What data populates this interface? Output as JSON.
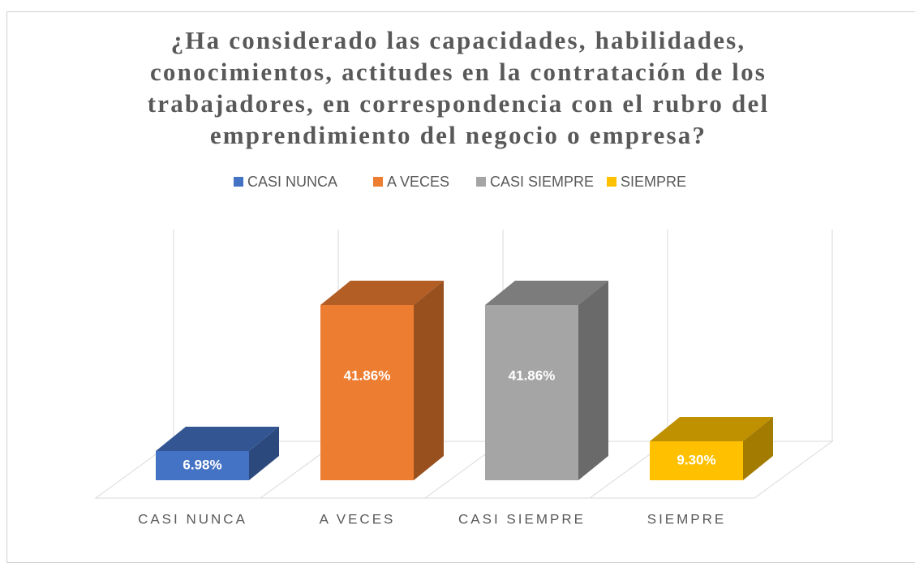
{
  "chart_data": {
    "type": "bar3d",
    "title": "¿Ha considerado las capacidades, habilidades, conocimientos, actitudes en la contratación de los trabajadores, en correspondencia con el rubro del emprendimiento del negocio o empresa?",
    "categories": [
      "CASI NUNCA",
      "A VECES",
      "CASI SIEMPRE",
      "SIEMPRE"
    ],
    "values": [
      6.98,
      41.86,
      41.86,
      9.3
    ],
    "value_labels": [
      "6.98%",
      "41.86%",
      "41.86%",
      "9.30%"
    ],
    "colors": [
      "#4472c4",
      "#ed7d31",
      "#a5a5a5",
      "#ffc000"
    ],
    "legend": "top"
  }
}
